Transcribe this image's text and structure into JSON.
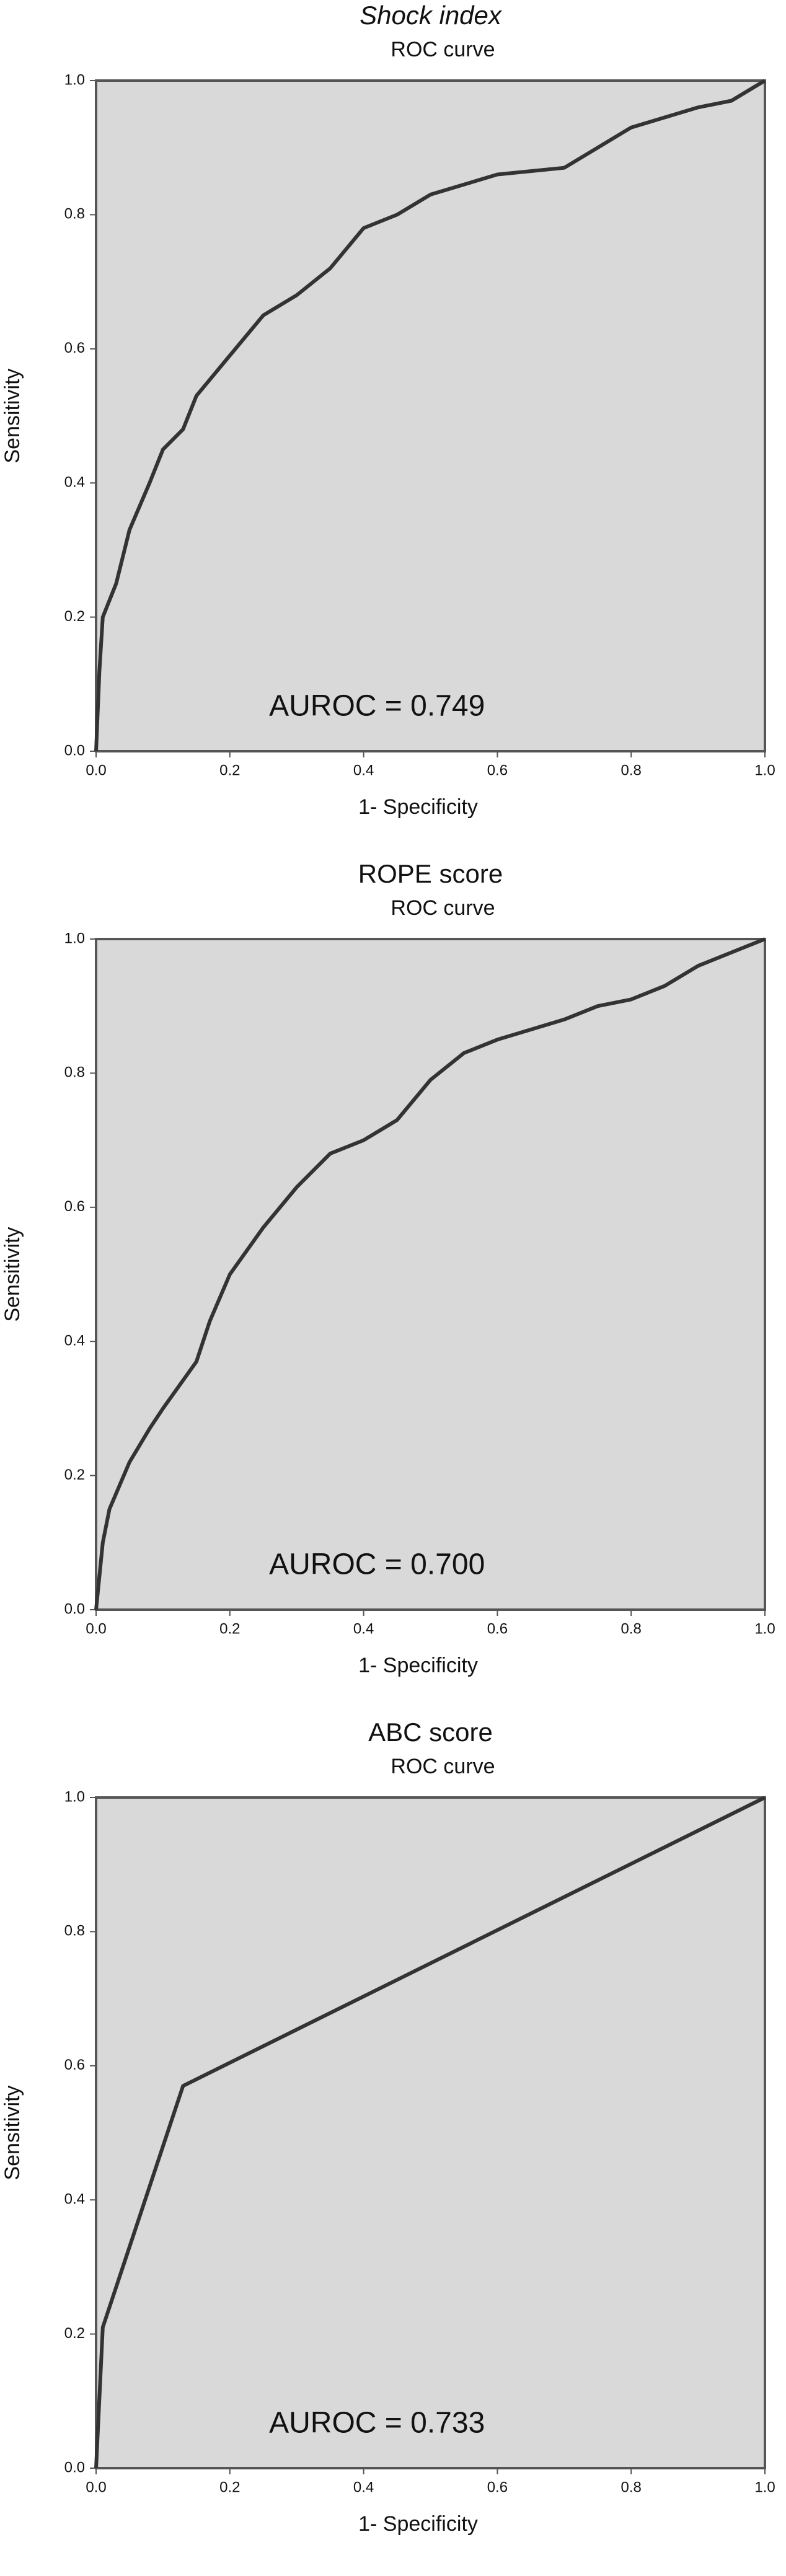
{
  "chart_data": [
    {
      "type": "line",
      "title": "Shock index",
      "title_italic": true,
      "subtitle": "ROC curve",
      "x_label": "1- Specificity",
      "y_label": "Sensitivity",
      "annotation": "AUROC = 0.749",
      "color": "#333333",
      "background": "#d9d9d9",
      "xlim": [
        0,
        1
      ],
      "ylim": [
        0,
        1
      ],
      "xticks": [
        {
          "value": 0,
          "label": "0.0"
        },
        0.2,
        0.4,
        0.6,
        0.8,
        {
          "value": 1,
          "label": "1.0"
        }
      ],
      "yticks": [
        {
          "value": 0,
          "label": "0.0"
        },
        0.2,
        0.4,
        0.6,
        0.8,
        {
          "value": 1,
          "label": "1.0"
        }
      ],
      "x": [
        0,
        0.005,
        0.01,
        0.03,
        0.05,
        0.08,
        0.1,
        0.13,
        0.15,
        0.2,
        0.25,
        0.3,
        0.35,
        0.4,
        0.45,
        0.5,
        0.6,
        0.7,
        0.75,
        0.8,
        0.9,
        0.95,
        1
      ],
      "values": [
        0,
        0.12,
        0.2,
        0.25,
        0.33,
        0.4,
        0.45,
        0.48,
        0.53,
        0.59,
        0.65,
        0.68,
        0.72,
        0.78,
        0.8,
        0.83,
        0.86,
        0.87,
        0.9,
        0.93,
        0.96,
        0.97,
        1
      ]
    },
    {
      "type": "line",
      "title": "ROPE score",
      "title_italic": false,
      "subtitle": "ROC curve",
      "x_label": "1- Specificity",
      "y_label": "Sensitivity",
      "annotation": "AUROC = 0.700",
      "color": "#333333",
      "background": "#d9d9d9",
      "xlim": [
        0,
        1
      ],
      "ylim": [
        0,
        1
      ],
      "xticks": [
        {
          "value": 0,
          "label": "0.0"
        },
        0.2,
        0.4,
        0.6,
        0.8,
        {
          "value": 1,
          "label": "1.0"
        }
      ],
      "yticks": [
        {
          "value": 0,
          "label": "0.0"
        },
        0.2,
        0.4,
        0.6,
        0.8,
        {
          "value": 1,
          "label": "1.0"
        }
      ],
      "x": [
        0,
        0.01,
        0.02,
        0.05,
        0.08,
        0.1,
        0.15,
        0.17,
        0.2,
        0.25,
        0.3,
        0.35,
        0.4,
        0.45,
        0.5,
        0.55,
        0.6,
        0.7,
        0.75,
        0.8,
        0.85,
        0.9,
        0.95,
        1
      ],
      "values": [
        0,
        0.1,
        0.15,
        0.22,
        0.27,
        0.3,
        0.37,
        0.43,
        0.5,
        0.57,
        0.63,
        0.68,
        0.7,
        0.73,
        0.79,
        0.83,
        0.85,
        0.88,
        0.9,
        0.91,
        0.93,
        0.96,
        0.98,
        1
      ]
    },
    {
      "type": "line",
      "title": "ABC score",
      "title_italic": false,
      "subtitle": "ROC curve",
      "x_label": "1- Specificity",
      "y_label": "Sensitivity",
      "annotation": "AUROC = 0.733",
      "color": "#333333",
      "background": "#d9d9d9",
      "xlim": [
        0,
        1
      ],
      "ylim": [
        0,
        1
      ],
      "xticks": [
        {
          "value": 0,
          "label": "0.0"
        },
        0.2,
        0.4,
        0.6,
        0.8,
        {
          "value": 1,
          "label": "1.0"
        }
      ],
      "yticks": [
        {
          "value": 0,
          "label": "0.0"
        },
        0.2,
        0.4,
        0.6,
        0.8,
        {
          "value": 1,
          "label": "1.0"
        }
      ],
      "x": [
        0,
        0.01,
        0.13,
        1
      ],
      "values": [
        0,
        0.21,
        0.57,
        1
      ]
    }
  ]
}
